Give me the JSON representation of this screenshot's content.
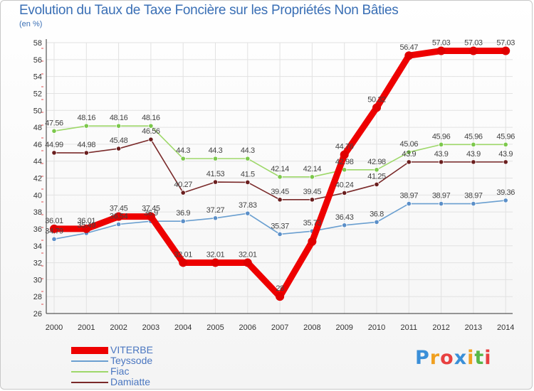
{
  "header": {
    "title": "Evolution du Taux de Taxe Foncière sur les Propriétés Non Bâties",
    "unit": "(en %)"
  },
  "logo": {
    "text": "Proxiti",
    "letters": [
      "P",
      "r",
      "o",
      "x",
      "i",
      "t",
      "i"
    ],
    "colors": [
      "#3a8fd8",
      "#f0a020",
      "#e84040",
      "#3a8fd8",
      "#f0a020",
      "#58b848",
      "#e84040"
    ]
  },
  "chart_data": {
    "type": "line",
    "title": "Evolution du Taux de Taxe Foncière sur les Propriétés Non Bâties",
    "ylabel": "(en %)",
    "xlabel": "",
    "ylim": [
      26,
      58
    ],
    "yticks": [
      26,
      28,
      30,
      32,
      34,
      36,
      38,
      40,
      42,
      44,
      46,
      48,
      50,
      52,
      54,
      56,
      58
    ],
    "grid": true,
    "categories": [
      "2000",
      "2001",
      "2002",
      "2003",
      "2004",
      "2005",
      "2006",
      "2007",
      "2008",
      "2009",
      "2010",
      "2011",
      "2012",
      "2013",
      "2014"
    ],
    "series": [
      {
        "name": "Teyssode",
        "color": "#6a9fd0",
        "marker": "#5b8fc8",
        "values": [
          34.79,
          35.49,
          36.54,
          36.9,
          36.9,
          37.27,
          37.83,
          35.37,
          35.73,
          36.43,
          36.8,
          38.97,
          38.97,
          38.97,
          39.36
        ],
        "labels": [
          "34.79",
          "35.49",
          "36.54",
          "36.9",
          "36.9",
          "37.27",
          "37.83",
          "35.37",
          "35.73",
          "36.43",
          "36.8",
          "38.97",
          "38.97",
          "38.97",
          "39.36"
        ]
      },
      {
        "name": "Fiac",
        "color": "#9ed86a",
        "marker": "#7cc84c",
        "values": [
          47.56,
          48.16,
          48.16,
          48.16,
          44.3,
          44.3,
          44.3,
          42.14,
          42.14,
          42.98,
          42.98,
          45.06,
          45.96,
          45.96,
          45.96
        ],
        "labels": [
          "47.56",
          "48.16",
          "48.16",
          "48.16",
          "44.3",
          "44.3",
          "44.3",
          "42.14",
          "42.14",
          "42.98",
          "42.98",
          "45.06",
          "45.96",
          "45.96",
          "45.96"
        ]
      },
      {
        "name": "Damiatte",
        "color": "#7a2a2a",
        "marker": "#6a1e1e",
        "values": [
          44.99,
          44.98,
          45.48,
          46.56,
          40.27,
          41.53,
          41.5,
          39.45,
          39.45,
          40.24,
          41.25,
          43.9,
          43.9,
          43.9,
          43.9
        ],
        "labels": [
          "44.99",
          "44.98",
          "45.48",
          "46.56",
          "40.27",
          "41.53",
          "41.5",
          "39.45",
          "39.45",
          "40.24",
          "41.25",
          "43.9",
          "43.9",
          "43.9",
          "43.9"
        ]
      },
      {
        "name": "VITERBE",
        "color": "#ee0000",
        "marker": "#e00000",
        "values": [
          36.01,
          36.01,
          37.45,
          37.45,
          32.01,
          32.01,
          32.01,
          28,
          34.5,
          44.76,
          50.32,
          56.47,
          57.03,
          57.03,
          57.03
        ],
        "labels": [
          "36.01",
          "36.01",
          "37.45",
          "37.45",
          "32.01",
          "32.01",
          "32.01",
          "28",
          "",
          "44.76",
          "50.32",
          "56.47",
          "57.03",
          "57.03",
          "57.03"
        ]
      }
    ],
    "legend": {
      "placement": "bottom-left",
      "order": [
        "VITERBE",
        "Teyssode",
        "Fiac",
        "Damiatte"
      ]
    }
  }
}
